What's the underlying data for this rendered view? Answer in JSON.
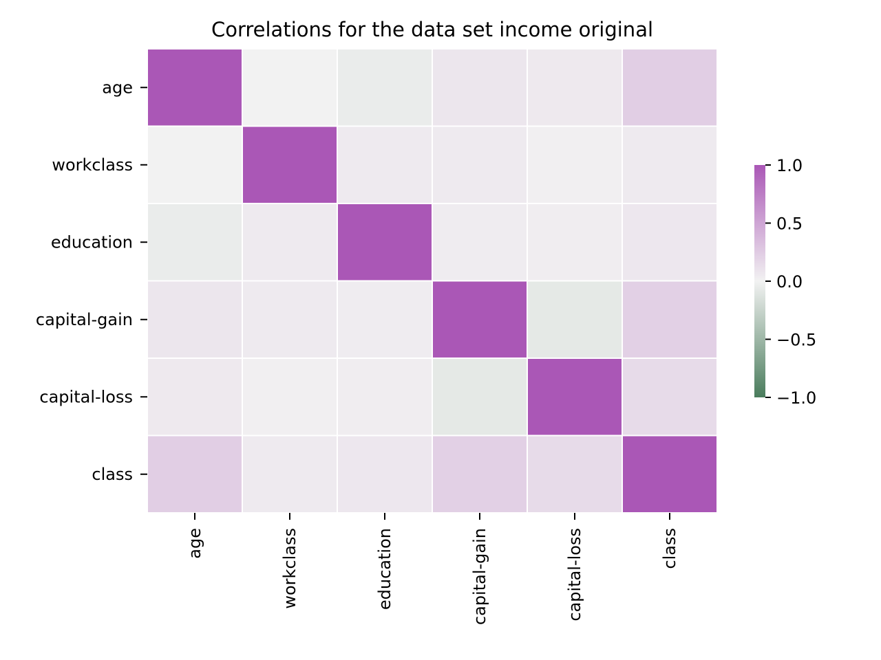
{
  "chart_data": {
    "type": "heatmap",
    "title": "Correlations for the data set income original",
    "x_labels": [
      "age",
      "workclass",
      "education",
      "capital-gain",
      "capital-loss",
      "class"
    ],
    "y_labels": [
      "age",
      "workclass",
      "education",
      "capital-gain",
      "capital-loss",
      "class"
    ],
    "matrix": [
      [
        1.0,
        0.0,
        -0.05,
        0.08,
        0.06,
        0.23
      ],
      [
        0.0,
        1.0,
        0.05,
        0.05,
        0.02,
        0.05
      ],
      [
        -0.05,
        0.05,
        1.0,
        0.04,
        0.03,
        0.07
      ],
      [
        0.08,
        0.05,
        0.04,
        1.0,
        -0.08,
        0.22
      ],
      [
        0.06,
        0.02,
        0.03,
        -0.08,
        1.0,
        0.15
      ],
      [
        0.23,
        0.05,
        0.07,
        0.22,
        0.15,
        1.0
      ]
    ],
    "colorbar": {
      "range": [
        -1.0,
        1.0
      ],
      "ticks": [
        1.0,
        0.5,
        0.0,
        -0.5,
        -1.0
      ],
      "tick_labels": [
        "1.0",
        "0.5",
        "0.0",
        "−0.5",
        "−1.0"
      ]
    },
    "colors": {
      "negative": "#4a7c5c",
      "neutral": "#f2f2f2",
      "positive": "#aa57b6"
    },
    "grid_lines": "white"
  }
}
